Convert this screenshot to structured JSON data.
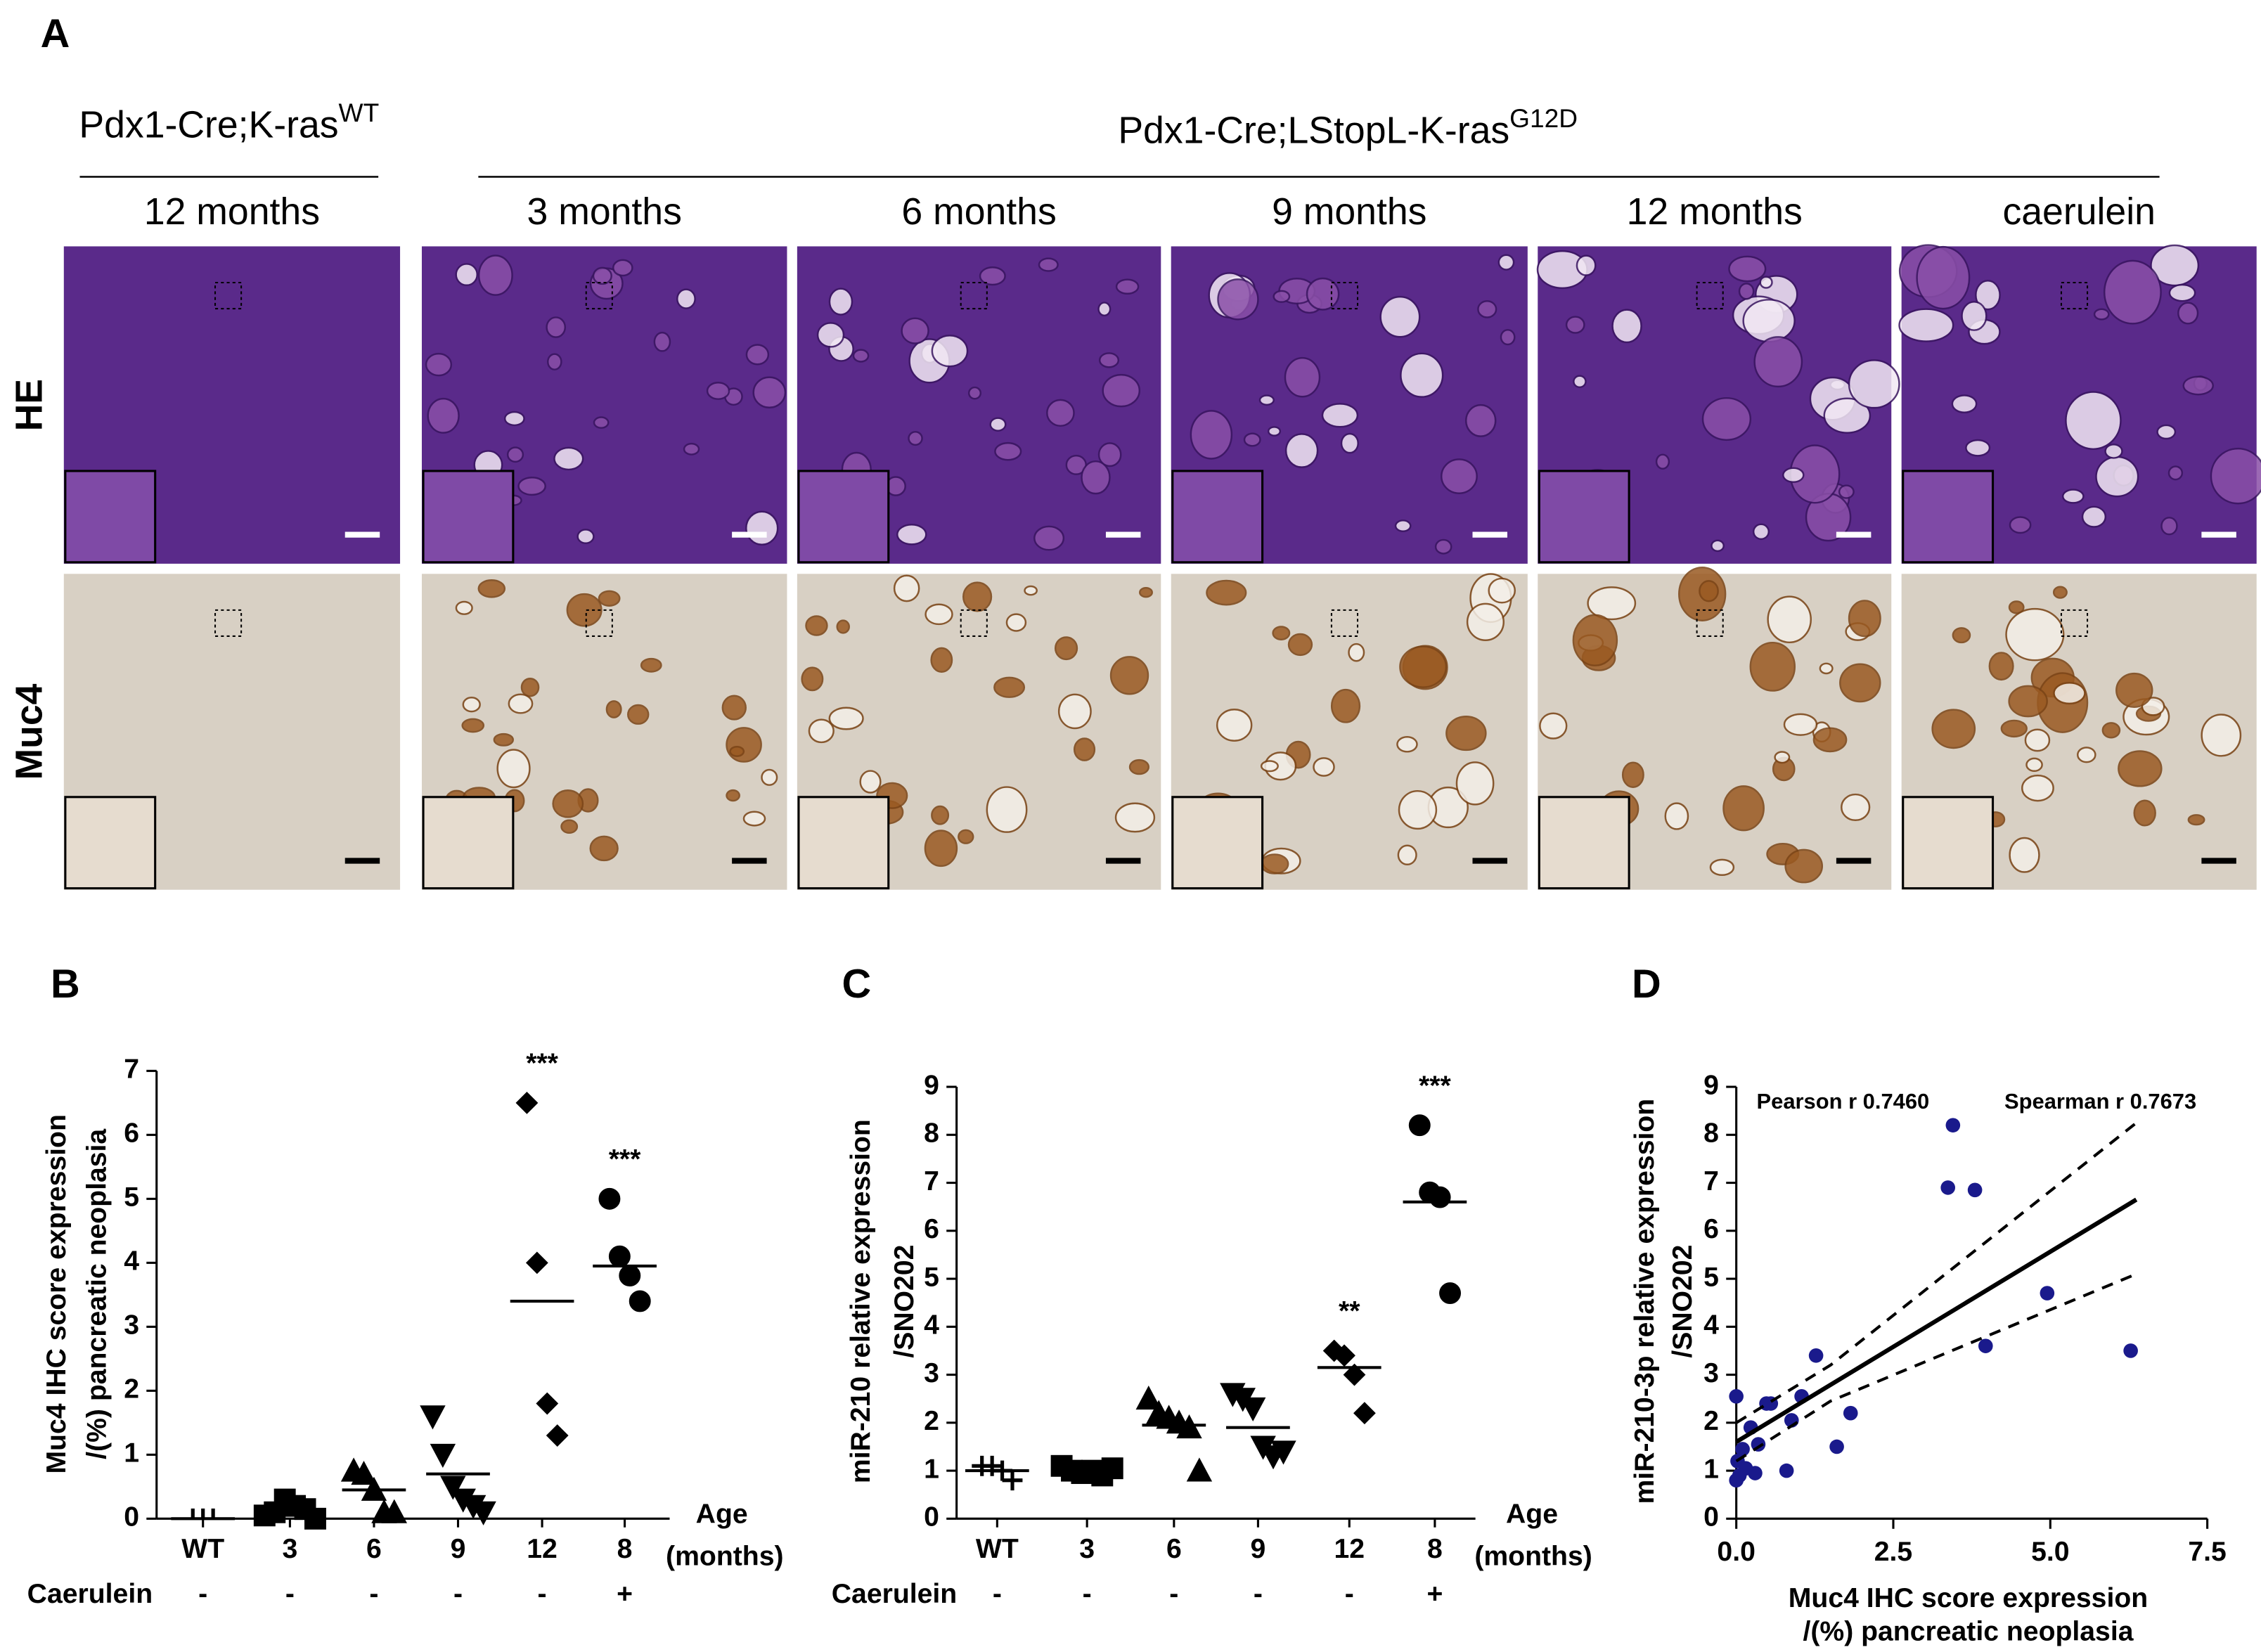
{
  "panel_a": {
    "panel": "A",
    "groups": [
      {
        "label": "Pdx1-Cre;K-ras",
        "superscript": "WT"
      },
      {
        "label": "Pdx1-Cre;LStopL-K-ras",
        "superscript": "G12D"
      }
    ],
    "columns": [
      "12 months",
      "3 months",
      "6 months",
      "9 months",
      "12 months",
      "caerulein"
    ],
    "rows": [
      "HE",
      "Muc4"
    ]
  },
  "chart_data": [
    {
      "type": "dotplot",
      "panel": "B",
      "ylabel": [
        "Muc4 IHC score expression",
        "/(%) pancreatic neoplasia"
      ],
      "categories": [
        "WT",
        "3",
        "6",
        "9",
        "12",
        "8"
      ],
      "xlabel": [
        "Age",
        "(months)"
      ],
      "row_label": "Caerulein",
      "row_values": [
        "-",
        "-",
        "-",
        "-",
        "-",
        "+"
      ],
      "markers": [
        "vline",
        "square",
        "triangle",
        "triangle-down",
        "diamond",
        "circle"
      ],
      "groups": [
        {
          "values": [
            0,
            0,
            0
          ],
          "mean": 0
        },
        {
          "values": [
            0.05,
            0.1,
            0.3,
            0.2,
            0.15,
            0.0
          ],
          "mean": 0.12
        },
        {
          "values": [
            0.75,
            0.7,
            0.45,
            0.1,
            0.1
          ],
          "mean": 0.45
        },
        {
          "values": [
            1.6,
            1.0,
            0.5,
            0.3,
            0.2,
            0.1
          ],
          "mean": 0.7
        },
        {
          "values": [
            6.5,
            4.0,
            1.8,
            1.3
          ],
          "mean": 3.4
        },
        {
          "values": [
            5.0,
            4.1,
            3.8,
            3.4
          ],
          "mean": 3.95
        }
      ],
      "annotations": [
        null,
        null,
        null,
        null,
        "***",
        "***"
      ],
      "ylim": [
        0,
        7
      ],
      "yticks": [
        0,
        1,
        2,
        3,
        4,
        5,
        6,
        7
      ],
      "color": "#000000"
    },
    {
      "type": "dotplot",
      "panel": "C",
      "ylabel": [
        "miR-210 relative expression",
        "/SNO202"
      ],
      "categories": [
        "WT",
        "3",
        "6",
        "9",
        "12",
        "8"
      ],
      "xlabel": [
        "Age",
        "(months)"
      ],
      "row_label": "Caerulein",
      "row_values": [
        "-",
        "-",
        "-",
        "-",
        "-",
        "+"
      ],
      "markers": [
        "plus",
        "square",
        "triangle",
        "triangle-down",
        "diamond",
        "circle"
      ],
      "groups": [
        {
          "values": [
            1.1,
            1.1,
            1.0,
            0.8
          ],
          "mean": 1.0
        },
        {
          "values": [
            1.1,
            1.0,
            0.95,
            1.0,
            0.9,
            1.05
          ],
          "mean": 1.0
        },
        {
          "values": [
            2.5,
            2.2,
            2.1,
            2.0,
            1.9,
            1.0
          ],
          "mean": 1.95
        },
        {
          "values": [
            2.6,
            2.5,
            2.3,
            1.5,
            1.3,
            1.4
          ],
          "mean": 1.9
        },
        {
          "values": [
            3.5,
            3.4,
            3.0,
            2.2
          ],
          "mean": 3.15
        },
        {
          "values": [
            8.2,
            6.8,
            6.7,
            4.7
          ],
          "mean": 6.6
        }
      ],
      "annotations": [
        null,
        null,
        null,
        null,
        "**",
        "***"
      ],
      "ylim": [
        0,
        9
      ],
      "yticks": [
        0,
        1,
        2,
        3,
        4,
        5,
        6,
        7,
        8,
        9
      ],
      "color": "#000000"
    },
    {
      "type": "scatter",
      "panel": "D",
      "ylabel": [
        "miR-210-3p relative expression",
        "/SNO202"
      ],
      "xlabel": [
        "Muc4 IHC score expression",
        "/(%) pancreatic neoplasia"
      ],
      "annotations": [
        "Pearson r  0.7460",
        "Spearman r  0.7673"
      ],
      "x": [
        3.45,
        3.37,
        3.8,
        4.95,
        3.97,
        6.28,
        1.27,
        0.48,
        0.55,
        1.04,
        0,
        1.82,
        0.88,
        0.23,
        0.35,
        1.6,
        0.1,
        0.15,
        0.8,
        0.3,
        0,
        0.05,
        0.02
      ],
      "y": [
        8.2,
        6.9,
        6.85,
        4.7,
        3.6,
        3.5,
        3.4,
        2.4,
        2.4,
        2.55,
        2.55,
        2.2,
        2.05,
        1.9,
        1.55,
        1.5,
        1.45,
        1.05,
        1.0,
        0.95,
        0.8,
        0.9,
        1.2
      ],
      "fit": {
        "x": [
          0,
          6.37
        ],
        "y": [
          1.6,
          6.65
        ]
      },
      "ci_upper": {
        "x": [
          0,
          1.5,
          6.37
        ],
        "y": [
          2.0,
          3.2,
          8.25
        ]
      },
      "ci_lower": {
        "x": [
          0,
          1.5,
          6.37
        ],
        "y": [
          1.2,
          2.45,
          5.1
        ]
      },
      "xlim": [
        0,
        7.5
      ],
      "xticks": [
        {
          "value": 0,
          "label": "0.0"
        },
        2.5,
        {
          "value": 5,
          "label": "5.0"
        },
        {
          "value": 7.5,
          "label": "7.5"
        }
      ],
      "ylim": [
        0,
        9
      ],
      "yticks": [
        0,
        1,
        2,
        3,
        4,
        5,
        6,
        7,
        8,
        9
      ],
      "color": "#1a1a8c"
    }
  ]
}
